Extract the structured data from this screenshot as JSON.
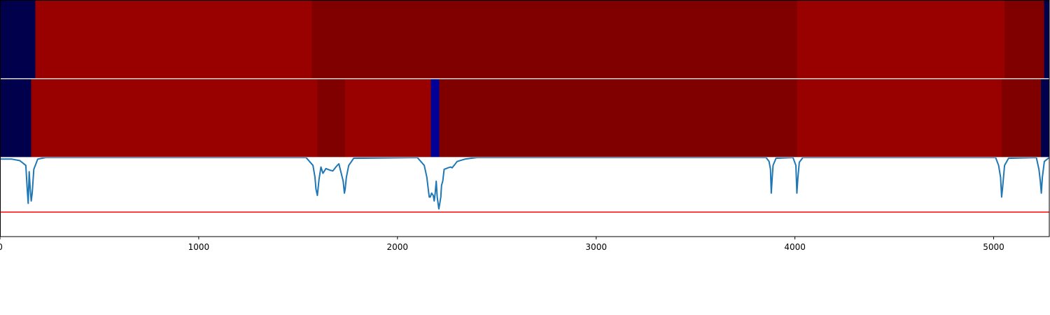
{
  "chart_data": {
    "type": "heatmap",
    "title": "",
    "xlabel": "",
    "ylabel": "",
    "xlim": [
      0,
      5280
    ],
    "x_ticks": [
      0,
      1000,
      2000,
      3000,
      4000,
      5000
    ],
    "x_tick_labels": [
      "0",
      "1000",
      "2000",
      "3000",
      "4000",
      "5000"
    ],
    "grid": false,
    "legend": "none",
    "colors": {
      "segment_a": "#00004c",
      "segment_b": "#990000",
      "segment_c": "#800000",
      "segment_d": "#000099",
      "signal": "#1f77b4",
      "threshold": "#ff0000",
      "separator": "#ffffff",
      "frame": "#000000"
    },
    "tracks": [
      {
        "segments": [
          {
            "start": 0,
            "end": 178,
            "color_key": "segment_a"
          },
          {
            "start": 178,
            "end": 1570,
            "color_key": "segment_b"
          },
          {
            "start": 1570,
            "end": 1737,
            "color_key": "segment_c"
          },
          {
            "start": 1737,
            "end": 4010,
            "color_key": "segment_c"
          },
          {
            "start": 4010,
            "end": 5055,
            "color_key": "segment_b"
          },
          {
            "start": 5055,
            "end": 5253,
            "color_key": "segment_c"
          },
          {
            "start": 5253,
            "end": 5280,
            "color_key": "segment_a"
          }
        ]
      },
      {
        "segments": [
          {
            "start": 0,
            "end": 157,
            "color_key": "segment_a"
          },
          {
            "start": 157,
            "end": 1598,
            "color_key": "segment_b"
          },
          {
            "start": 1598,
            "end": 1737,
            "color_key": "segment_c"
          },
          {
            "start": 1737,
            "end": 2168,
            "color_key": "segment_b"
          },
          {
            "start": 2168,
            "end": 2210,
            "color_key": "segment_d"
          },
          {
            "start": 2210,
            "end": 3880,
            "color_key": "segment_c"
          },
          {
            "start": 3880,
            "end": 4010,
            "color_key": "segment_c"
          },
          {
            "start": 4010,
            "end": 5040,
            "color_key": "segment_b"
          },
          {
            "start": 5040,
            "end": 5238,
            "color_key": "segment_c"
          },
          {
            "start": 5238,
            "end": 5280,
            "color_key": "segment_a"
          }
        ]
      }
    ],
    "signal": {
      "ylim": [
        0,
        1
      ],
      "threshold": 0.31,
      "x": [
        0,
        60,
        100,
        130,
        137,
        142,
        147,
        152,
        157,
        162,
        170,
        190,
        230,
        1540,
        1575,
        1585,
        1590,
        1597,
        1605,
        1615,
        1625,
        1640,
        1660,
        1675,
        1690,
        1705,
        1717,
        1727,
        1733,
        1737,
        1743,
        1755,
        1780,
        2100,
        2135,
        2148,
        2155,
        2160,
        2165,
        2172,
        2180,
        2185,
        2190,
        2195,
        2200,
        2208,
        2213,
        2218,
        2222,
        2228,
        2235,
        2245,
        2255,
        2268,
        2275,
        2285,
        2300,
        2340,
        2370,
        2400,
        3855,
        3870,
        3877,
        3881,
        3885,
        3890,
        3905,
        3990,
        4005,
        4010,
        4015,
        4022,
        4040,
        5010,
        5025,
        5035,
        5040,
        5045,
        5055,
        5075,
        5215,
        5228,
        5235,
        5240,
        5245,
        5255,
        5280
      ],
      "y": [
        0.98,
        0.98,
        0.96,
        0.9,
        0.6,
        0.42,
        0.82,
        0.6,
        0.45,
        0.55,
        0.85,
        0.98,
        1.0,
        1.0,
        0.9,
        0.75,
        0.6,
        0.52,
        0.72,
        0.88,
        0.8,
        0.86,
        0.84,
        0.83,
        0.88,
        0.92,
        0.8,
        0.7,
        0.55,
        0.6,
        0.75,
        0.9,
        0.99,
        1.0,
        0.9,
        0.75,
        0.6,
        0.5,
        0.5,
        0.55,
        0.52,
        0.45,
        0.55,
        0.7,
        0.5,
        0.35,
        0.42,
        0.5,
        0.65,
        0.7,
        0.85,
        0.86,
        0.87,
        0.88,
        0.87,
        0.9,
        0.95,
        0.98,
        0.99,
        1.0,
        1.0,
        0.95,
        0.85,
        0.55,
        0.72,
        0.9,
        0.99,
        1.0,
        0.9,
        0.55,
        0.75,
        0.94,
        1.0,
        1.0,
        0.9,
        0.75,
        0.5,
        0.62,
        0.9,
        0.99,
        1.0,
        0.85,
        0.7,
        0.55,
        0.75,
        0.95,
        1.0
      ]
    }
  }
}
